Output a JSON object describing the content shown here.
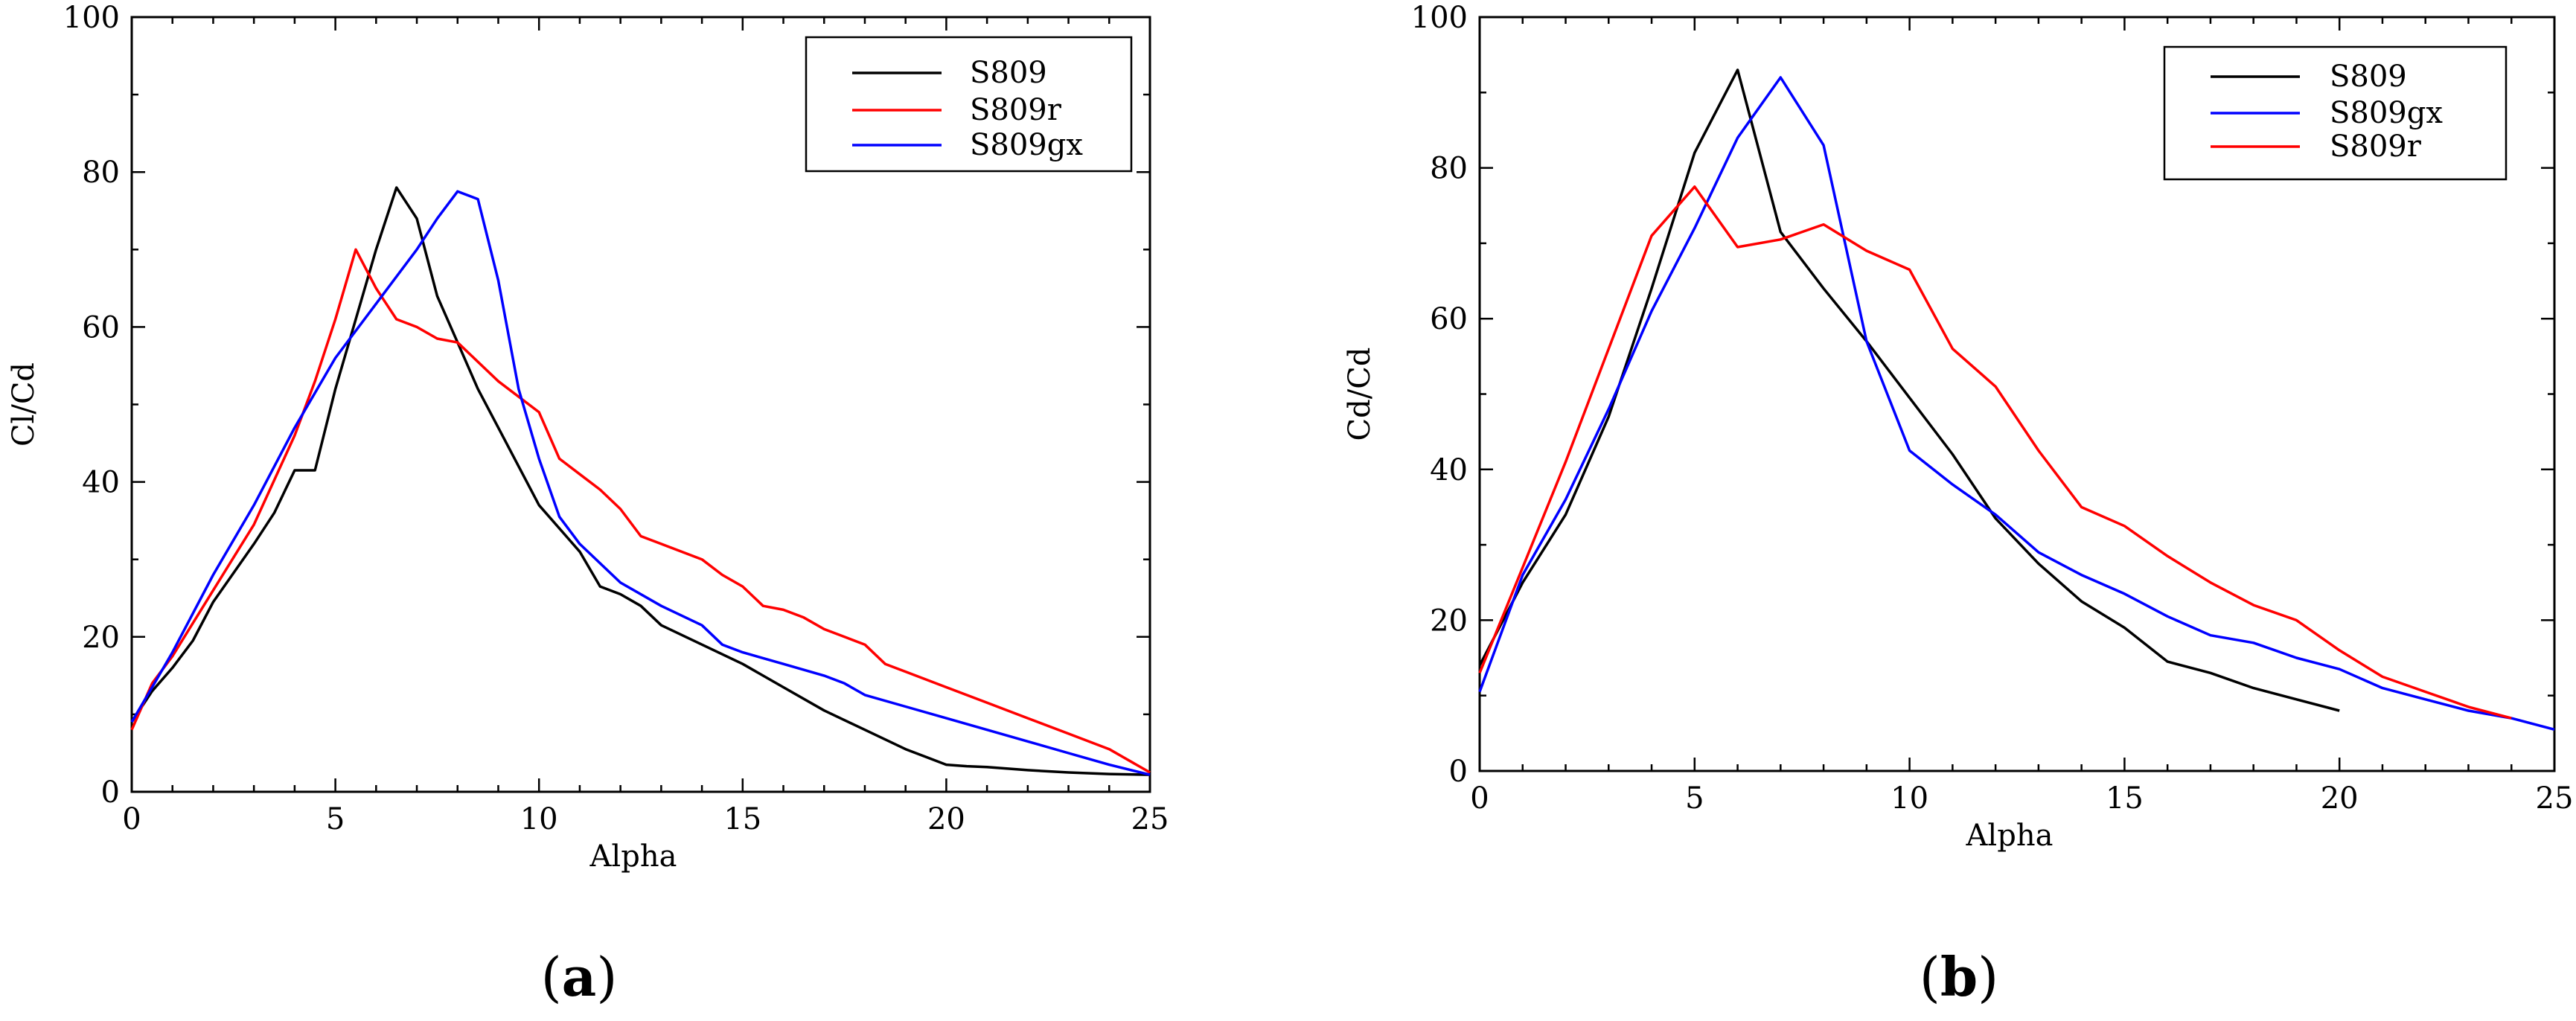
{
  "chart_data": [
    {
      "type": "line",
      "panel": "a",
      "caption_open": "(",
      "caption_letter": "a",
      "caption_close": ")",
      "title": "",
      "xlabel": "Alpha",
      "ylabel": "Cl/Cd",
      "xlim": [
        0,
        25
      ],
      "ylim": [
        0,
        100
      ],
      "xticks": [
        0,
        5,
        10,
        15,
        20,
        25
      ],
      "yticks": [
        0,
        20,
        40,
        60,
        80,
        100
      ],
      "legend_position": "top-right",
      "series": [
        {
          "name": "S809",
          "color": "#000000",
          "points": [
            [
              0,
              9
            ],
            [
              0.5,
              13
            ],
            [
              1,
              16
            ],
            [
              1.5,
              19.5
            ],
            [
              2,
              24.5
            ],
            [
              3,
              32
            ],
            [
              3.5,
              36
            ],
            [
              4,
              41.5
            ],
            [
              4.5,
              41.5
            ],
            [
              5,
              52
            ],
            [
              5.5,
              61
            ],
            [
              6,
              70
            ],
            [
              6.5,
              78
            ],
            [
              7,
              74
            ],
            [
              7.5,
              64
            ],
            [
              8,
              58
            ],
            [
              8.5,
              52
            ],
            [
              9,
              47
            ],
            [
              10,
              37
            ],
            [
              11,
              31
            ],
            [
              11.5,
              26.5
            ],
            [
              12,
              25.5
            ],
            [
              12.5,
              24
            ],
            [
              13,
              21.5
            ],
            [
              14,
              19
            ],
            [
              15,
              16.5
            ],
            [
              16,
              13.5
            ],
            [
              17,
              10.5
            ],
            [
              18,
              8
            ],
            [
              19,
              5.5
            ],
            [
              20,
              3.5
            ],
            [
              20.5,
              3.3
            ],
            [
              21,
              3.2
            ],
            [
              22,
              2.8
            ],
            [
              23,
              2.5
            ],
            [
              24,
              2.3
            ],
            [
              25,
              2.2
            ]
          ]
        },
        {
          "name": "S809r",
          "color": "#ff0000",
          "points": [
            [
              0,
              8
            ],
            [
              0.5,
              14
            ],
            [
              1,
              17.5
            ],
            [
              2,
              26
            ],
            [
              3,
              34.5
            ],
            [
              4,
              46
            ],
            [
              4.5,
              53
            ],
            [
              5,
              61
            ],
            [
              5.5,
              70
            ],
            [
              6,
              65
            ],
            [
              6.5,
              61
            ],
            [
              7,
              60
            ],
            [
              7.5,
              58.5
            ],
            [
              8,
              58
            ],
            [
              9,
              53
            ],
            [
              10,
              49
            ],
            [
              10.5,
              43
            ],
            [
              11,
              41
            ],
            [
              11.5,
              39
            ],
            [
              12,
              36.5
            ],
            [
              12.5,
              33
            ],
            [
              13,
              32
            ],
            [
              14,
              30
            ],
            [
              14.5,
              28
            ],
            [
              15,
              26.5
            ],
            [
              15.5,
              24
            ],
            [
              16,
              23.5
            ],
            [
              16.5,
              22.5
            ],
            [
              17,
              21
            ],
            [
              17.5,
              20
            ],
            [
              18,
              19
            ],
            [
              18.5,
              16.5
            ],
            [
              19,
              15.5
            ],
            [
              20,
              13.5
            ],
            [
              21,
              11.5
            ],
            [
              22,
              9.5
            ],
            [
              23,
              7.5
            ],
            [
              24,
              5.5
            ],
            [
              25,
              2.5
            ]
          ]
        },
        {
          "name": "S809gx",
          "color": "#0000ff",
          "points": [
            [
              0,
              9
            ],
            [
              0.5,
              13.5
            ],
            [
              1,
              18
            ],
            [
              2,
              28
            ],
            [
              3,
              37
            ],
            [
              4,
              47
            ],
            [
              5,
              56
            ],
            [
              6,
              63
            ],
            [
              7,
              70
            ],
            [
              7.5,
              74
            ],
            [
              8,
              77.5
            ],
            [
              8.5,
              76.5
            ],
            [
              9,
              66
            ],
            [
              9.5,
              52
            ],
            [
              10,
              43
            ],
            [
              10.5,
              35.5
            ],
            [
              11,
              32
            ],
            [
              12,
              27
            ],
            [
              13,
              24
            ],
            [
              14,
              21.5
            ],
            [
              14.5,
              19
            ],
            [
              15,
              18
            ],
            [
              16,
              16.5
            ],
            [
              17,
              15
            ],
            [
              17.5,
              14
            ],
            [
              18,
              12.5
            ],
            [
              19,
              11
            ],
            [
              20,
              9.5
            ],
            [
              21,
              8
            ],
            [
              22,
              6.5
            ],
            [
              23,
              5
            ],
            [
              24,
              3.5
            ],
            [
              25,
              2.2
            ]
          ]
        }
      ]
    },
    {
      "type": "line",
      "panel": "b",
      "caption_open": "(",
      "caption_letter": "b",
      "caption_close": ")",
      "title": "",
      "xlabel": "Alpha",
      "ylabel": "Cd/Cd",
      "xlim": [
        0,
        25
      ],
      "ylim": [
        0,
        100
      ],
      "xticks": [
        0,
        5,
        10,
        15,
        20,
        25
      ],
      "yticks": [
        0,
        20,
        40,
        60,
        80,
        100
      ],
      "legend_position": "top-right",
      "series": [
        {
          "name": "S809",
          "color": "#000000",
          "points": [
            [
              0,
              14
            ],
            [
              1,
              25
            ],
            [
              2,
              34
            ],
            [
              3,
              47
            ],
            [
              4,
              64
            ],
            [
              5,
              82
            ],
            [
              6,
              93
            ],
            [
              7,
              71.5
            ],
            [
              8,
              64
            ],
            [
              9,
              57
            ],
            [
              10,
              49.5
            ],
            [
              11,
              42
            ],
            [
              12,
              33.5
            ],
            [
              13,
              27.5
            ],
            [
              14,
              22.5
            ],
            [
              15,
              19
            ],
            [
              16,
              14.5
            ],
            [
              17,
              13
            ],
            [
              18,
              11
            ],
            [
              19,
              9.5
            ],
            [
              20,
              8
            ]
          ]
        },
        {
          "name": "S809gx",
          "color": "#0000ff",
          "points": [
            [
              0,
              10.5
            ],
            [
              1,
              26
            ],
            [
              2,
              36
            ],
            [
              3,
              48
            ],
            [
              4,
              61
            ],
            [
              5,
              72
            ],
            [
              6,
              84
            ],
            [
              7,
              92
            ],
            [
              8,
              83
            ],
            [
              9,
              57
            ],
            [
              10,
              42.5
            ],
            [
              11,
              38
            ],
            [
              12,
              34
            ],
            [
              13,
              29
            ],
            [
              14,
              26
            ],
            [
              15,
              23.5
            ],
            [
              16,
              20.5
            ],
            [
              17,
              18
            ],
            [
              18,
              17
            ],
            [
              19,
              15
            ],
            [
              20,
              13.5
            ],
            [
              21,
              11
            ],
            [
              22,
              9.5
            ],
            [
              23,
              8
            ],
            [
              24,
              7
            ],
            [
              25,
              5.5
            ]
          ]
        },
        {
          "name": "S809r",
          "color": "#ff0000",
          "points": [
            [
              0,
              13
            ],
            [
              1,
              27
            ],
            [
              2,
              41
            ],
            [
              3,
              56
            ],
            [
              4,
              71
            ],
            [
              5,
              77.5
            ],
            [
              6,
              69.5
            ],
            [
              7,
              70.5
            ],
            [
              8,
              72.5
            ],
            [
              9,
              69
            ],
            [
              10,
              66.5
            ],
            [
              11,
              56
            ],
            [
              12,
              51
            ],
            [
              13,
              42.5
            ],
            [
              14,
              35
            ],
            [
              15,
              32.5
            ],
            [
              16,
              28.5
            ],
            [
              17,
              25
            ],
            [
              18,
              22
            ],
            [
              19,
              20
            ],
            [
              20,
              16
            ],
            [
              21,
              12.5
            ],
            [
              22,
              10.5
            ],
            [
              23,
              8.5
            ],
            [
              24,
              7
            ]
          ]
        }
      ]
    }
  ]
}
